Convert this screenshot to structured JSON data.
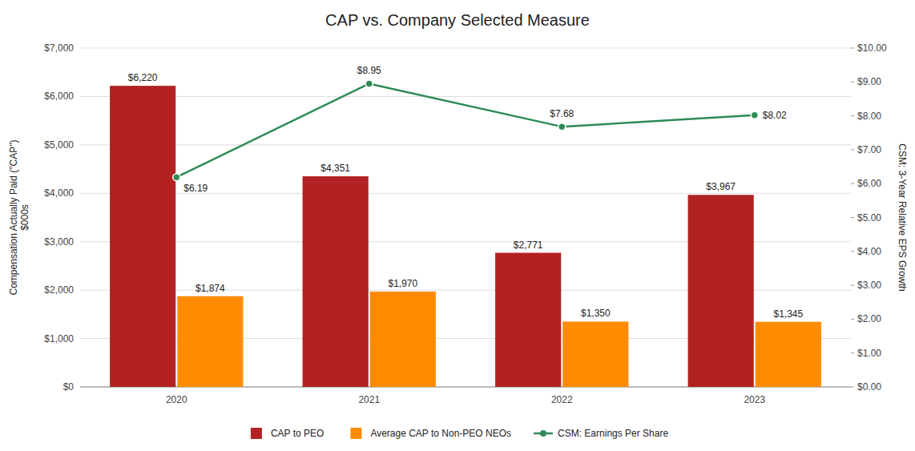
{
  "chart_data": {
    "type": "bar",
    "title": "CAP vs. Company Selected Measure",
    "categories": [
      "2020",
      "2021",
      "2022",
      "2023"
    ],
    "series": [
      {
        "name": "CAP to PEO",
        "color": "#B22222",
        "values": [
          6220,
          4351,
          2771,
          3967
        ],
        "value_labels": [
          "$6,220",
          "$4,351",
          "$2,771",
          "$3,967"
        ]
      },
      {
        "name": "Average CAP to Non-PEO NEOs",
        "color": "#FF8C00",
        "values": [
          1874,
          1970,
          1350,
          1345
        ],
        "value_labels": [
          "$1,874",
          "$1,970",
          "$1,350",
          "$1,345"
        ]
      },
      {
        "name": "CSM: Earnings Per Share",
        "type": "line",
        "axis": "y2",
        "color": "#2E8B57",
        "marker": "circle",
        "values": [
          6.19,
          8.95,
          7.68,
          8.02
        ],
        "value_labels": [
          "$6.19",
          "$8.95",
          "$7.68",
          "$8.02"
        ]
      }
    ],
    "ylabel": "Compensation Actually Paid (\"CAP\")\n$000s",
    "y2label": "CSM: 3-Year Relative EPS Growth",
    "ylim": [
      0,
      7000
    ],
    "yticks": [
      {
        "value": 0,
        "label": "$0"
      },
      {
        "value": 1000,
        "label": "$1,000"
      },
      {
        "value": 2000,
        "label": "$2,000"
      },
      {
        "value": 3000,
        "label": "$3,000"
      },
      {
        "value": 4000,
        "label": "$4,000"
      },
      {
        "value": 5000,
        "label": "$5,000"
      },
      {
        "value": 6000,
        "label": "$6,000"
      },
      {
        "value": 7000,
        "label": "$7,000"
      }
    ],
    "y2lim": [
      0,
      10.0
    ],
    "y2ticks": [
      {
        "value": 0,
        "label": "$0.00"
      },
      {
        "value": 1,
        "label": "$1.00"
      },
      {
        "value": 2,
        "label": "$2.00"
      },
      {
        "value": 3,
        "label": "$3.00"
      },
      {
        "value": 4,
        "label": "$4.00"
      },
      {
        "value": 5,
        "label": "$5.00"
      },
      {
        "value": 6,
        "label": "$6.00"
      },
      {
        "value": 7,
        "label": "$7.00"
      },
      {
        "value": 8,
        "label": "$8.00"
      },
      {
        "value": 9,
        "label": "$9.00"
      },
      {
        "value": 10,
        "label": "$10.00"
      }
    ],
    "grid": true,
    "legend": "bottom",
    "data_labels": true
  }
}
